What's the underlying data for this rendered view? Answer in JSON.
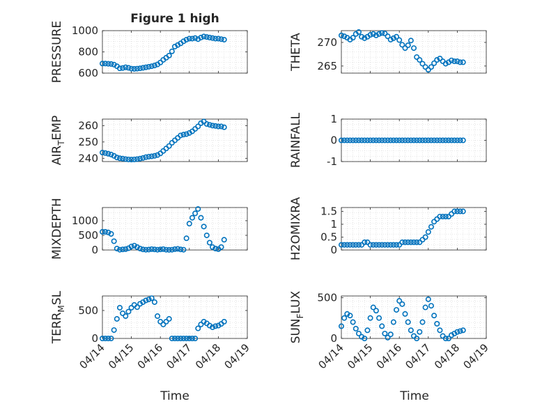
{
  "figure": {
    "title": "Figure 1 high",
    "xlabel": "Time"
  },
  "chart_data": [
    {
      "type": "scatter",
      "ylabel": "PRESSURE",
      "xlim": [
        0,
        5
      ],
      "ylim": [
        600,
        1000
      ],
      "yticks": [
        600,
        800,
        1000
      ],
      "xticks": [
        "04/14",
        "04/15",
        "04/16",
        "04/17",
        "04/18",
        "04/19"
      ],
      "x": [
        0.0,
        0.1,
        0.2,
        0.3,
        0.4,
        0.5,
        0.6,
        0.7,
        0.8,
        0.9,
        1.0,
        1.1,
        1.2,
        1.3,
        1.4,
        1.5,
        1.6,
        1.7,
        1.8,
        1.9,
        2.0,
        2.1,
        2.2,
        2.3,
        2.4,
        2.5,
        2.6,
        2.7,
        2.8,
        2.9,
        3.0,
        3.1,
        3.2,
        3.3,
        3.4,
        3.5,
        3.6,
        3.7,
        3.8,
        3.9,
        4.0,
        4.1,
        4.2
      ],
      "y": [
        690,
        690,
        688,
        686,
        680,
        665,
        645,
        648,
        655,
        650,
        642,
        640,
        642,
        645,
        650,
        655,
        660,
        665,
        672,
        682,
        700,
        725,
        745,
        765,
        805,
        850,
        865,
        880,
        900,
        915,
        925,
        925,
        930,
        920,
        935,
        945,
        940,
        935,
        930,
        925,
        925,
        920,
        915
      ]
    },
    {
      "type": "scatter",
      "ylabel": "THETA",
      "xlim": [
        0,
        5
      ],
      "ylim": [
        263.5,
        272.5
      ],
      "yticks": [
        265,
        270
      ],
      "xticks": [
        "04/14",
        "04/15",
        "04/16",
        "04/17",
        "04/18",
        "04/19"
      ],
      "x": [
        0.0,
        0.1,
        0.2,
        0.3,
        0.4,
        0.5,
        0.6,
        0.7,
        0.8,
        0.9,
        1.0,
        1.1,
        1.2,
        1.3,
        1.4,
        1.5,
        1.6,
        1.7,
        1.8,
        1.9,
        2.0,
        2.1,
        2.2,
        2.3,
        2.4,
        2.5,
        2.6,
        2.7,
        2.8,
        2.9,
        3.0,
        3.1,
        3.2,
        3.3,
        3.4,
        3.5,
        3.6,
        3.7,
        3.8,
        3.9,
        4.0,
        4.1,
        4.2
      ],
      "y": [
        271.5,
        271.3,
        271.0,
        270.6,
        271.0,
        271.8,
        272.2,
        271.2,
        270.9,
        271.2,
        271.6,
        271.8,
        271.5,
        271.8,
        272.0,
        271.9,
        271.3,
        270.6,
        270.9,
        271.2,
        270.5,
        269.5,
        268.8,
        269.4,
        270.4,
        268.8,
        266.9,
        266.3,
        265.5,
        264.8,
        264.2,
        264.8,
        265.6,
        266.3,
        266.6,
        266.0,
        265.5,
        265.8,
        266.2,
        266.0,
        266.0,
        265.8,
        265.8
      ]
    },
    {
      "type": "scatter",
      "ylabel_parts": [
        "AIR",
        "T",
        "EMP"
      ],
      "xlim": [
        0,
        5
      ],
      "ylim": [
        238,
        264
      ],
      "yticks": [
        240,
        250,
        260
      ],
      "xticks": [
        "04/14",
        "04/15",
        "04/16",
        "04/17",
        "04/18",
        "04/19"
      ],
      "x": [
        0.0,
        0.1,
        0.2,
        0.3,
        0.4,
        0.5,
        0.6,
        0.7,
        0.8,
        0.9,
        1.0,
        1.1,
        1.2,
        1.3,
        1.4,
        1.5,
        1.6,
        1.7,
        1.8,
        1.9,
        2.0,
        2.1,
        2.2,
        2.3,
        2.4,
        2.5,
        2.6,
        2.7,
        2.8,
        2.9,
        3.0,
        3.1,
        3.2,
        3.3,
        3.4,
        3.5,
        3.6,
        3.7,
        3.8,
        3.9,
        4.0,
        4.1,
        4.2
      ],
      "y": [
        243.5,
        243.2,
        242.8,
        242.3,
        241.5,
        240.5,
        240.0,
        239.8,
        239.5,
        239.3,
        239.2,
        239.3,
        239.5,
        239.8,
        240.2,
        240.7,
        241.0,
        241.2,
        241.5,
        242.0,
        243.0,
        244.5,
        246.0,
        247.5,
        249.5,
        251.0,
        252.5,
        254.0,
        254.5,
        254.8,
        255.5,
        256.5,
        258.0,
        259.5,
        261.5,
        262.5,
        261.0,
        260.5,
        260.0,
        259.8,
        259.5,
        259.5,
        259.0
      ]
    },
    {
      "type": "scatter",
      "ylabel": "RAINFALL",
      "xlim": [
        0,
        5
      ],
      "ylim": [
        -1,
        1
      ],
      "yticks": [
        -1,
        0,
        1
      ],
      "xticks": [
        "04/14",
        "04/15",
        "04/16",
        "04/17",
        "04/18",
        "04/19"
      ],
      "x": [
        0.0,
        0.1,
        0.2,
        0.3,
        0.4,
        0.5,
        0.6,
        0.7,
        0.8,
        0.9,
        1.0,
        1.1,
        1.2,
        1.3,
        1.4,
        1.5,
        1.6,
        1.7,
        1.8,
        1.9,
        2.0,
        2.1,
        2.2,
        2.3,
        2.4,
        2.5,
        2.6,
        2.7,
        2.8,
        2.9,
        3.0,
        3.1,
        3.2,
        3.3,
        3.4,
        3.5,
        3.6,
        3.7,
        3.8,
        3.9,
        4.0,
        4.1,
        4.2
      ],
      "y": [
        0,
        0,
        0,
        0,
        0,
        0,
        0,
        0,
        0,
        0,
        0,
        0,
        0,
        0,
        0,
        0,
        0,
        0,
        0,
        0,
        0,
        0,
        0,
        0,
        0,
        0,
        0,
        0,
        0,
        0,
        0,
        0,
        0,
        0,
        0,
        0,
        0,
        0,
        0,
        0,
        0,
        0,
        0
      ]
    },
    {
      "type": "scatter",
      "ylabel": "MIXDEPTH",
      "xlim": [
        0,
        5
      ],
      "ylim": [
        0,
        1450
      ],
      "yticks": [
        0,
        500,
        1000
      ],
      "xticks": [
        "04/14",
        "04/15",
        "04/16",
        "04/17",
        "04/18",
        "04/19"
      ],
      "x": [
        0.0,
        0.1,
        0.2,
        0.3,
        0.4,
        0.5,
        0.6,
        0.7,
        0.8,
        0.9,
        1.0,
        1.1,
        1.2,
        1.3,
        1.4,
        1.5,
        1.6,
        1.7,
        1.8,
        1.9,
        2.0,
        2.1,
        2.2,
        2.3,
        2.4,
        2.5,
        2.6,
        2.7,
        2.8,
        2.9,
        3.0,
        3.1,
        3.2,
        3.3,
        3.4,
        3.5,
        3.6,
        3.7,
        3.8,
        3.9,
        4.0,
        4.1,
        4.2
      ],
      "y": [
        620,
        620,
        600,
        550,
        300,
        50,
        10,
        20,
        30,
        60,
        120,
        150,
        100,
        50,
        20,
        10,
        15,
        30,
        20,
        10,
        20,
        30,
        10,
        5,
        10,
        30,
        40,
        20,
        10,
        400,
        900,
        1100,
        1250,
        1400,
        1100,
        800,
        500,
        250,
        100,
        50,
        30,
        100,
        350
      ]
    },
    {
      "type": "scatter",
      "ylabel": "H2OMIXRA",
      "xlim": [
        0,
        5
      ],
      "ylim": [
        0,
        1.65
      ],
      "yticks": [
        0,
        0.5,
        1,
        1.5
      ],
      "xticks": [
        "04/14",
        "04/15",
        "04/16",
        "04/17",
        "04/18",
        "04/19"
      ],
      "x": [
        0.0,
        0.1,
        0.2,
        0.3,
        0.4,
        0.5,
        0.6,
        0.7,
        0.8,
        0.9,
        1.0,
        1.1,
        1.2,
        1.3,
        1.4,
        1.5,
        1.6,
        1.7,
        1.8,
        1.9,
        2.0,
        2.1,
        2.2,
        2.3,
        2.4,
        2.5,
        2.6,
        2.7,
        2.8,
        2.9,
        3.0,
        3.1,
        3.2,
        3.3,
        3.4,
        3.5,
        3.6,
        3.7,
        3.8,
        3.9,
        4.0,
        4.1,
        4.2
      ],
      "y": [
        0.2,
        0.2,
        0.2,
        0.2,
        0.2,
        0.2,
        0.2,
        0.2,
        0.3,
        0.3,
        0.2,
        0.2,
        0.2,
        0.2,
        0.2,
        0.2,
        0.2,
        0.2,
        0.2,
        0.2,
        0.2,
        0.3,
        0.3,
        0.3,
        0.3,
        0.3,
        0.3,
        0.3,
        0.4,
        0.5,
        0.7,
        0.9,
        1.1,
        1.2,
        1.3,
        1.3,
        1.3,
        1.3,
        1.4,
        1.5,
        1.5,
        1.5,
        1.5
      ]
    },
    {
      "type": "scatter",
      "ylabel_parts": [
        "TERR",
        "M",
        "SL"
      ],
      "xlim": [
        0,
        5
      ],
      "ylim": [
        0,
        760
      ],
      "yticks": [
        0,
        500
      ],
      "xticks": [
        "04/14",
        "04/15",
        "04/16",
        "04/17",
        "04/18",
        "04/19"
      ],
      "x": [
        0.0,
        0.1,
        0.2,
        0.3,
        0.4,
        0.5,
        0.6,
        0.7,
        0.8,
        0.9,
        1.0,
        1.1,
        1.2,
        1.3,
        1.4,
        1.5,
        1.6,
        1.7,
        1.8,
        1.9,
        2.0,
        2.1,
        2.2,
        2.3,
        2.4,
        2.5,
        2.6,
        2.7,
        2.8,
        2.9,
        3.0,
        3.1,
        3.2,
        3.3,
        3.4,
        3.5,
        3.6,
        3.7,
        3.8,
        3.9,
        4.0,
        4.1,
        4.2
      ],
      "y": [
        0,
        0,
        0,
        0,
        150,
        350,
        550,
        450,
        400,
        480,
        550,
        600,
        560,
        620,
        650,
        680,
        700,
        720,
        650,
        400,
        300,
        250,
        300,
        350,
        0,
        0,
        0,
        0,
        0,
        0,
        0,
        0,
        0,
        180,
        250,
        300,
        270,
        230,
        200,
        220,
        230,
        260,
        300
      ]
    },
    {
      "type": "scatter",
      "ylabel_parts": [
        "SUN",
        "F",
        "LUX"
      ],
      "xlim": [
        0,
        5
      ],
      "ylim": [
        0,
        520
      ],
      "yticks": [
        0,
        500
      ],
      "xticks": [
        "04/14",
        "04/15",
        "04/16",
        "04/17",
        "04/18",
        "04/19"
      ],
      "x": [
        0.0,
        0.1,
        0.2,
        0.3,
        0.4,
        0.5,
        0.6,
        0.7,
        0.8,
        0.9,
        1.0,
        1.1,
        1.2,
        1.3,
        1.4,
        1.5,
        1.6,
        1.7,
        1.8,
        1.9,
        2.0,
        2.1,
        2.2,
        2.3,
        2.4,
        2.5,
        2.6,
        2.7,
        2.8,
        2.9,
        3.0,
        3.1,
        3.2,
        3.3,
        3.4,
        3.5,
        3.6,
        3.7,
        3.8,
        3.9,
        4.0,
        4.1,
        4.2
      ],
      "y": [
        150,
        250,
        300,
        280,
        200,
        120,
        60,
        20,
        0,
        100,
        250,
        380,
        340,
        250,
        150,
        60,
        10,
        50,
        200,
        350,
        460,
        420,
        300,
        200,
        100,
        30,
        0,
        80,
        200,
        380,
        480,
        400,
        280,
        180,
        100,
        30,
        0,
        0,
        40,
        60,
        80,
        90,
        100
      ]
    }
  ]
}
